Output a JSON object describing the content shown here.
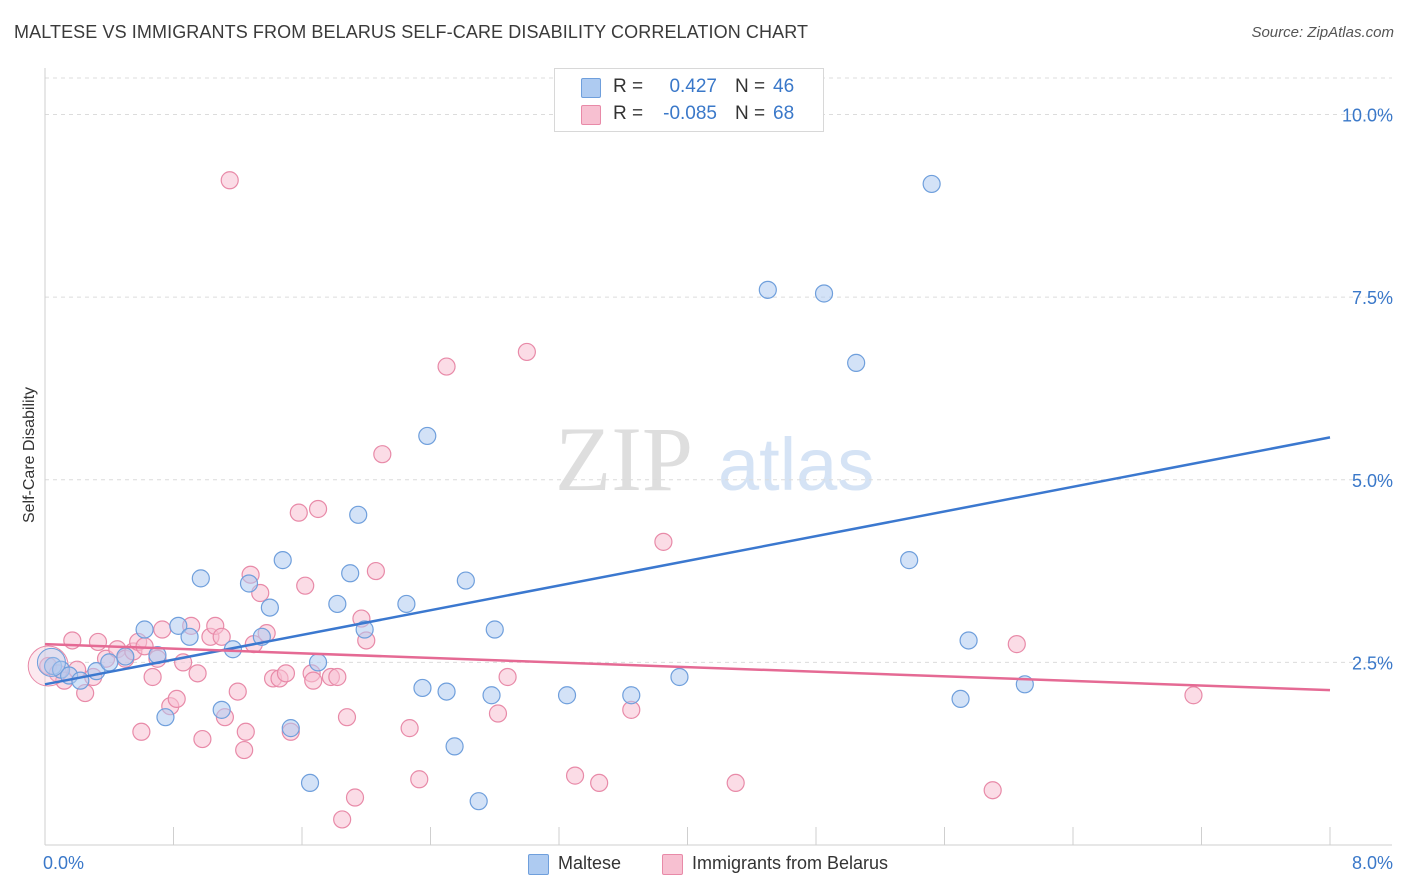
{
  "header": {
    "title": "MALTESE VS IMMIGRANTS FROM BELARUS SELF-CARE DISABILITY CORRELATION CHART",
    "source": "Source: ZipAtlas.com"
  },
  "watermark": {
    "zip": "ZIP",
    "atlas": "atlas"
  },
  "legend_top": {
    "rows": [
      {
        "r_label": "R =",
        "r_value": "0.427",
        "n_label": "N =",
        "n_value": "46"
      },
      {
        "r_label": "R =",
        "r_value": "-0.085",
        "n_label": "N =",
        "n_value": "68"
      }
    ]
  },
  "legend_bottom": {
    "items": [
      {
        "label": "Maltese"
      },
      {
        "label": "Immigrants from Belarus"
      }
    ]
  },
  "colors": {
    "maltese_fill": "#aecbf1",
    "maltese_stroke": "#6f9fdc",
    "maltese_line": "#3b78cf",
    "belarus_fill": "#f7c0d1",
    "belarus_stroke": "#e88aa8",
    "belarus_line": "#e56a94",
    "grid": "#dcdcdc",
    "tick_label": "#3a78c9"
  },
  "chart_data": {
    "type": "scatter",
    "title": "MALTESE VS IMMIGRANTS FROM BELARUS SELF-CARE DISABILITY CORRELATION CHART",
    "xlabel": "",
    "ylabel": "Self-Care Disability",
    "xlim": [
      0,
      8
    ],
    "ylim": [
      0,
      10.5
    ],
    "x_tick_labels": [
      "0.0%",
      "8.0%"
    ],
    "y_ticks": [
      2.5,
      5.0,
      7.5,
      10.0
    ],
    "y_tick_labels": [
      "2.5%",
      "5.0%",
      "7.5%",
      "10.0%"
    ],
    "grid": "horizontal dashed",
    "legend_position": "top-center",
    "series": [
      {
        "name": "Maltese",
        "r": 0.427,
        "n": 46,
        "trend": {
          "x": [
            0,
            8
          ],
          "y": [
            2.2,
            5.58
          ]
        },
        "points": [
          [
            0.05,
            2.45
          ],
          [
            0.1,
            2.4
          ],
          [
            0.15,
            2.32
          ],
          [
            0.22,
            2.25
          ],
          [
            0.32,
            2.38
          ],
          [
            0.4,
            2.5
          ],
          [
            0.5,
            2.58
          ],
          [
            0.62,
            2.95
          ],
          [
            0.7,
            2.6
          ],
          [
            0.75,
            1.75
          ],
          [
            0.83,
            3
          ],
          [
            0.9,
            2.85
          ],
          [
            0.97,
            3.65
          ],
          [
            1.1,
            1.85
          ],
          [
            1.17,
            2.68
          ],
          [
            1.27,
            3.58
          ],
          [
            1.35,
            2.85
          ],
          [
            1.4,
            3.25
          ],
          [
            1.48,
            3.9
          ],
          [
            1.53,
            1.6
          ],
          [
            1.65,
            0.85
          ],
          [
            1.7,
            2.5
          ],
          [
            1.82,
            3.3
          ],
          [
            1.9,
            3.72
          ],
          [
            1.95,
            4.52
          ],
          [
            1.99,
            2.95
          ],
          [
            2.25,
            3.3
          ],
          [
            2.35,
            2.15
          ],
          [
            2.38,
            5.6
          ],
          [
            2.5,
            2.1
          ],
          [
            2.55,
            1.35
          ],
          [
            2.62,
            3.62
          ],
          [
            2.7,
            0.6
          ],
          [
            2.78,
            2.05
          ],
          [
            2.8,
            2.95
          ],
          [
            3.25,
            2.05
          ],
          [
            3.95,
            2.3
          ],
          [
            4.5,
            7.6
          ],
          [
            4.85,
            7.55
          ],
          [
            5.05,
            6.6
          ],
          [
            5.38,
            3.9
          ],
          [
            5.52,
            9.05
          ],
          [
            5.7,
            2.0
          ],
          [
            5.75,
            2.8
          ],
          [
            6.1,
            2.2
          ],
          [
            3.65,
            2.05
          ]
        ]
      },
      {
        "name": "Immigrants from Belarus",
        "r": -0.085,
        "n": 68,
        "trend": {
          "x": [
            0,
            8
          ],
          "y": [
            2.75,
            2.12
          ]
        },
        "points": [
          [
            0.02,
            2.45
          ],
          [
            0.08,
            2.35
          ],
          [
            0.12,
            2.25
          ],
          [
            0.17,
            2.8
          ],
          [
            0.25,
            2.08
          ],
          [
            0.3,
            2.3
          ],
          [
            0.33,
            2.78
          ],
          [
            0.38,
            2.55
          ],
          [
            0.45,
            2.68
          ],
          [
            0.5,
            2.55
          ],
          [
            0.55,
            2.65
          ],
          [
            0.58,
            2.78
          ],
          [
            0.62,
            2.72
          ],
          [
            0.67,
            2.3
          ],
          [
            0.7,
            2.55
          ],
          [
            0.73,
            2.95
          ],
          [
            0.78,
            1.9
          ],
          [
            0.82,
            2.0
          ],
          [
            0.86,
            2.5
          ],
          [
            0.91,
            3.0
          ],
          [
            0.95,
            2.35
          ],
          [
            0.98,
            1.45
          ],
          [
            1.03,
            2.85
          ],
          [
            1.06,
            3.0
          ],
          [
            1.1,
            2.85
          ],
          [
            1.12,
            1.75
          ],
          [
            1.15,
            9.1
          ],
          [
            1.2,
            2.1
          ],
          [
            1.24,
            1.3
          ],
          [
            1.28,
            3.7
          ],
          [
            1.3,
            2.75
          ],
          [
            1.34,
            3.45
          ],
          [
            1.38,
            2.9
          ],
          [
            1.42,
            2.28
          ],
          [
            1.46,
            2.28
          ],
          [
            1.5,
            2.35
          ],
          [
            1.53,
            1.55
          ],
          [
            1.58,
            4.55
          ],
          [
            1.62,
            3.55
          ],
          [
            1.66,
            2.35
          ],
          [
            1.7,
            4.6
          ],
          [
            1.78,
            2.3
          ],
          [
            1.82,
            2.3
          ],
          [
            1.88,
            1.75
          ],
          [
            1.93,
            0.65
          ],
          [
            1.97,
            3.1
          ],
          [
            2.0,
            2.8
          ],
          [
            2.06,
            3.75
          ],
          [
            2.1,
            5.35
          ],
          [
            2.27,
            1.6
          ],
          [
            2.33,
            0.9
          ],
          [
            2.5,
            6.55
          ],
          [
            2.82,
            1.8
          ],
          [
            2.88,
            2.3
          ],
          [
            3.0,
            6.75
          ],
          [
            3.3,
            0.95
          ],
          [
            3.45,
            0.85
          ],
          [
            3.65,
            1.85
          ],
          [
            3.85,
            4.15
          ],
          [
            4.3,
            0.85
          ],
          [
            5.9,
            0.75
          ],
          [
            6.05,
            2.75
          ],
          [
            7.15,
            2.05
          ],
          [
            1.85,
            0.35
          ],
          [
            1.67,
            2.25
          ],
          [
            0.2,
            2.4
          ],
          [
            0.6,
            1.55
          ],
          [
            1.25,
            1.55
          ]
        ]
      }
    ]
  }
}
